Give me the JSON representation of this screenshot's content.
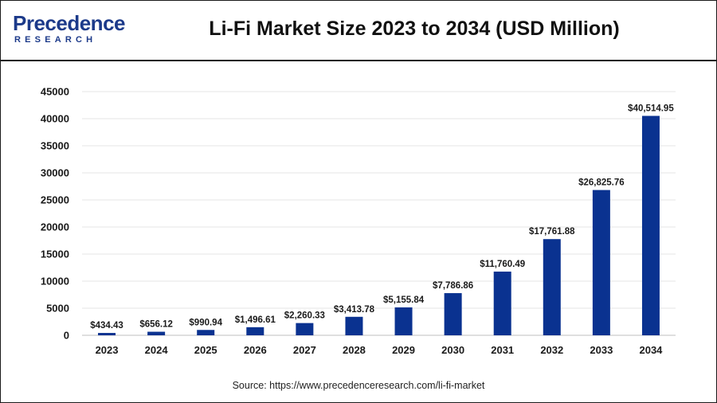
{
  "header": {
    "logo_main": "Precedence",
    "logo_sub": "RESEARCH",
    "title": "Li-Fi Market Size 2023 to 2034 (USD Million)"
  },
  "footer": {
    "source": "Source: https://www.precedenceresearch.com/li-fi-market"
  },
  "colors": {
    "bar": "#0a3290",
    "brand": "#1c3a8a",
    "grid": "#e6e6e6"
  },
  "chart_data": {
    "type": "bar",
    "title": "Li-Fi Market Size 2023 to 2034 (USD Million)",
    "xlabel": "",
    "ylabel": "",
    "categories": [
      "2023",
      "2024",
      "2025",
      "2026",
      "2027",
      "2028",
      "2029",
      "2030",
      "2031",
      "2032",
      "2033",
      "2034"
    ],
    "values": [
      434.43,
      656.12,
      990.94,
      1496.61,
      2260.33,
      3413.78,
      5155.84,
      7786.86,
      11760.49,
      17761.88,
      26825.76,
      40514.95
    ],
    "data_labels": [
      "$434.43",
      "$656.12",
      "$990.94",
      "$1,496.61",
      "$2,260.33",
      "$3,413.78",
      "$5,155.84",
      "$7,786.86",
      "$11,760.49",
      "$17,761.88",
      "$26,825.76",
      "$40,514.95"
    ],
    "yticks": [
      "0",
      "5000",
      "10000",
      "15000",
      "20000",
      "25000",
      "30000",
      "35000",
      "40000",
      "45000"
    ],
    "ylim": [
      0,
      45000
    ],
    "grid": true,
    "legend": "none"
  }
}
